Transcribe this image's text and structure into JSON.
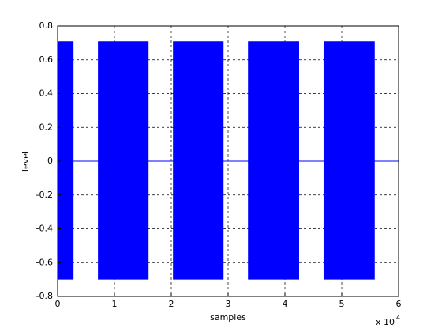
{
  "chart_data": {
    "type": "signal",
    "x_label": "samples",
    "y_label": "level",
    "x_multiplier_label": "x 10",
    "x_multiplier_exponent": 4,
    "color": "#0000ff",
    "rest_level": 0,
    "bursts": [
      {
        "start": 0,
        "end": 0.28,
        "high": 0.71,
        "low": -0.7
      },
      {
        "start": 0.71,
        "end": 1.6,
        "high": 0.71,
        "low": -0.7
      },
      {
        "start": 2.03,
        "end": 2.92,
        "high": 0.71,
        "low": -0.7
      },
      {
        "start": 3.35,
        "end": 4.25,
        "high": 0.71,
        "low": -0.7
      },
      {
        "start": 4.68,
        "end": 5.58,
        "high": 0.71,
        "low": -0.7
      }
    ],
    "xlim": [
      0,
      6
    ],
    "xticks": [
      0,
      1,
      2,
      3,
      4,
      5,
      6
    ],
    "ylim": [
      -0.8,
      0.8
    ],
    "yticks": [
      -0.8,
      -0.6,
      -0.4,
      -0.2,
      0,
      0.2,
      0.4,
      0.6,
      0.8
    ],
    "grid": true
  }
}
